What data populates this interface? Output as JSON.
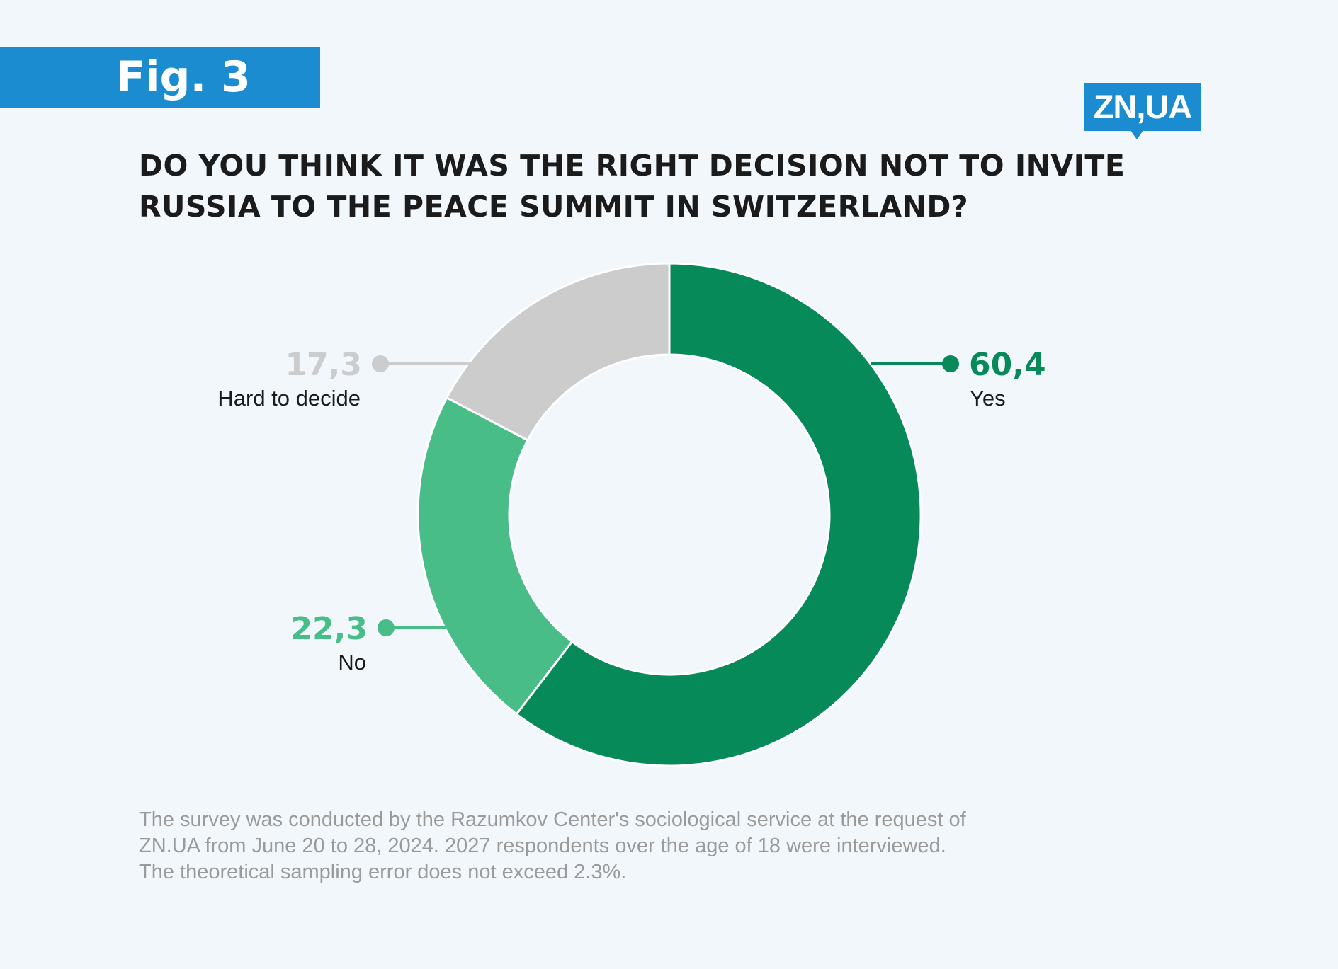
{
  "header": {
    "fig_label": "Fig. 3",
    "logo_text": "ZN,UA"
  },
  "title_lines": [
    "DO YOU THINK IT WAS THE RIGHT DECISION NOT TO INVITE",
    "RUSSIA TO THE PEACE SUMMIT IN SWITZERLAND?"
  ],
  "chart_data": {
    "type": "pie",
    "title": "DO YOU THINK IT WAS THE RIGHT DECISION NOT TO INVITE RUSSIA TO THE PEACE SUMMIT IN SWITZERLAND?",
    "donut": true,
    "slices": [
      {
        "label": "Yes",
        "value": 60.4,
        "display": "60,4",
        "color": "#078a5a",
        "side": "right"
      },
      {
        "label": "No",
        "value": 22.3,
        "display": "22,3",
        "color": "#48bd88",
        "side": "left"
      },
      {
        "label": "Hard to decide",
        "value": 17.3,
        "display": "17,3",
        "color": "#cccccc",
        "side": "left"
      }
    ]
  },
  "colors": {
    "background": "#f2f7fc",
    "accent": "#1a8ccf",
    "title_text": "#1b1b1b",
    "footnote_text": "#9a9a9a"
  },
  "footnote_lines": [
    "The survey was conducted by the Razumkov Center's sociological service at the request of",
    "ZN.UA from June 20 to 28, 2024. 2027 respondents over the age of 18 were interviewed.",
    "The theoretical sampling error does not exceed 2.3%."
  ]
}
